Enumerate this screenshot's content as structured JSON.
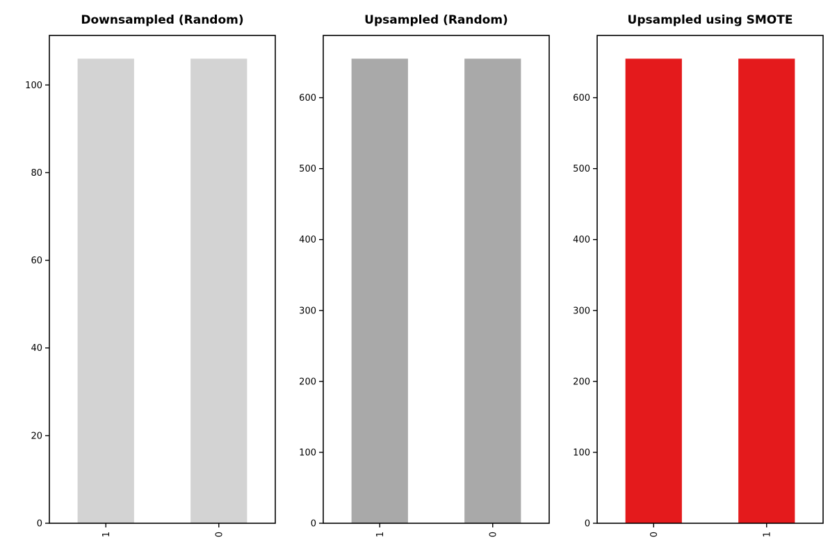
{
  "chart_data": [
    {
      "type": "bar",
      "title": "Downsampled (Random)",
      "categories": [
        "1",
        "0"
      ],
      "values": [
        106,
        106
      ],
      "color": "#d3d3d3",
      "ylim": [
        0,
        111.3
      ],
      "yticks": [
        0,
        20,
        40,
        60,
        80,
        100
      ],
      "xlabel": "",
      "ylabel": "",
      "grid": false
    },
    {
      "type": "bar",
      "title": "Upsampled (Random)",
      "categories": [
        "1",
        "0"
      ],
      "values": [
        655,
        655
      ],
      "color": "#a9a9a9",
      "ylim": [
        0,
        687.75
      ],
      "yticks": [
        0,
        100,
        200,
        300,
        400,
        500,
        600
      ],
      "xlabel": "",
      "ylabel": "",
      "grid": false
    },
    {
      "type": "bar",
      "title": "Upsampled using SMOTE",
      "categories": [
        "0",
        "1"
      ],
      "values": [
        655,
        655
      ],
      "color": "#e41a1c",
      "ylim": [
        0,
        687.75
      ],
      "yticks": [
        0,
        100,
        200,
        300,
        400,
        500,
        600
      ],
      "xlabel": "",
      "ylabel": "",
      "grid": false
    }
  ]
}
